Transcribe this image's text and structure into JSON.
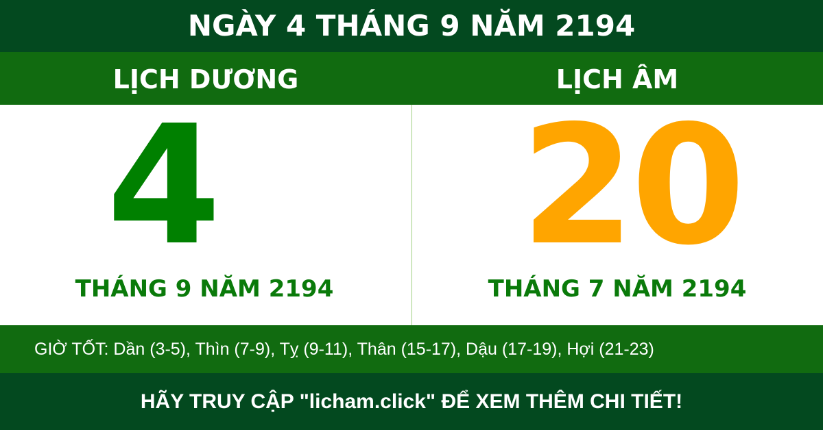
{
  "title": "NGÀY 4 THÁNG 9 NĂM 2194",
  "solar": {
    "heading": "LỊCH DƯƠNG",
    "day": "4",
    "month_year": "THÁNG 9 NĂM 2194",
    "color": "#008000"
  },
  "lunar": {
    "heading": "LỊCH ÂM",
    "day": "20",
    "month_year": "THÁNG 7 NĂM 2194",
    "color": "#ffa500"
  },
  "good_hours": "GIỜ TỐT: Dần (3-5), Thìn (7-9), Tỵ (9-11), Thân (15-17), Dậu (17-19), Hợi (21-23)",
  "footer": "HÃY TRUY CẬP \"licham.click\" ĐỂ XEM THÊM CHI TIẾT!",
  "colors": {
    "dark_green": "#03491f",
    "green": "#116b10"
  }
}
